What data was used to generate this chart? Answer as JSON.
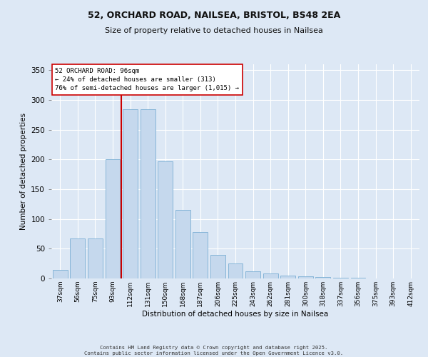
{
  "title_line1": "52, ORCHARD ROAD, NAILSEA, BRISTOL, BS48 2EA",
  "title_line2": "Size of property relative to detached houses in Nailsea",
  "xlabel": "Distribution of detached houses by size in Nailsea",
  "ylabel": "Number of detached properties",
  "categories": [
    "37sqm",
    "56sqm",
    "75sqm",
    "93sqm",
    "112sqm",
    "131sqm",
    "150sqm",
    "168sqm",
    "187sqm",
    "206sqm",
    "225sqm",
    "243sqm",
    "262sqm",
    "281sqm",
    "300sqm",
    "318sqm",
    "337sqm",
    "356sqm",
    "375sqm",
    "393sqm",
    "412sqm"
  ],
  "bar_heights": [
    15,
    67,
    67,
    200,
    285,
    285,
    197,
    115,
    78,
    40,
    25,
    12,
    8,
    5,
    4,
    2,
    1,
    1,
    0,
    0,
    0
  ],
  "bar_color": "#c5d8ed",
  "bar_edge_color": "#7aafd4",
  "background_color": "#dde8f5",
  "plot_bg_color": "#dde8f5",
  "fig_bg_color": "#dde8f5",
  "grid_color": "#ffffff",
  "vline_x": 3.5,
  "vline_color": "#cc0000",
  "annotation_text": "52 ORCHARD ROAD: 96sqm\n← 24% of detached houses are smaller (313)\n76% of semi-detached houses are larger (1,015) →",
  "annotation_box_color": "#ffffff",
  "annotation_box_edge": "#cc0000",
  "ylim": [
    0,
    360
  ],
  "yticks": [
    0,
    50,
    100,
    150,
    200,
    250,
    300,
    350
  ],
  "footer_line1": "Contains HM Land Registry data © Crown copyright and database right 2025.",
  "footer_line2": "Contains public sector information licensed under the Open Government Licence v3.0."
}
